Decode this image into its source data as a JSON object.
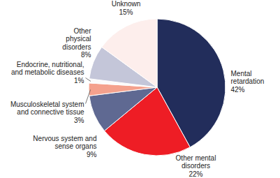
{
  "chart_data": {
    "type": "pie",
    "categories": [
      "Mental retardation",
      "Other mental disorders",
      "Nervous system and sense organs",
      "Musculoskeletal system and connective tissue",
      "Endocrine, nutritional, and metabolic diseases",
      "Other physical disorders",
      "Unknown"
    ],
    "values": [
      42,
      22,
      9,
      3,
      1,
      8,
      15
    ],
    "value_labels": [
      "42%",
      "22%",
      "9%",
      "3%",
      "1%",
      "8%",
      "15%"
    ],
    "colors": [
      "#222d5b",
      "#ee1d25",
      "#5f6992",
      "#f4a18d",
      "#fbfbfb",
      "#c4c6d9",
      "#fdeeec"
    ],
    "data_labels": true
  }
}
